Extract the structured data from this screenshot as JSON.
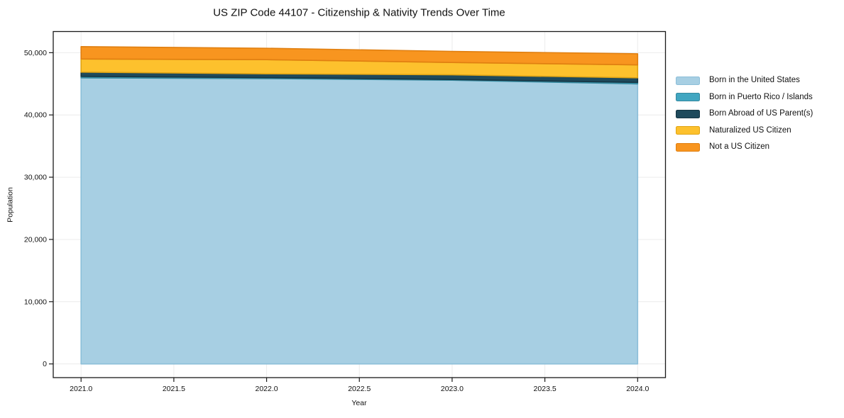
{
  "chart_data": {
    "type": "area",
    "stacked": true,
    "title": "US ZIP Code 44107 - Citizenship & Nativity Trends Over Time",
    "xlabel": "Year",
    "ylabel": "Population",
    "x": [
      2021,
      2022,
      2023,
      2024
    ],
    "series": [
      {
        "name": "Born in the United States",
        "fill": "#a7cfe3",
        "edge": "#8cbfd9",
        "values": [
          45960,
          45840,
          45580,
          44990
        ]
      },
      {
        "name": "Born in Puerto Rico / Islands",
        "fill": "#41a6c1",
        "edge": "#35899f",
        "values": [
          230,
          160,
          120,
          230
        ]
      },
      {
        "name": "Born Abroad of US Parent(s)",
        "fill": "#1f4a5c",
        "edge": "#163543",
        "values": [
          680,
          610,
          750,
          740
        ]
      },
      {
        "name": "Naturalized US Citizen",
        "fill": "#fdc12d",
        "edge": "#e0a414",
        "values": [
          2120,
          2270,
          1980,
          2080
        ]
      },
      {
        "name": "Not a US Citizen",
        "fill": "#f8951f",
        "edge": "#e07f10",
        "values": [
          1980,
          1830,
          1780,
          1790
        ]
      }
    ],
    "xlim": [
      2020.85,
      2024.15
    ],
    "ylim": [
      -2200,
      53400
    ],
    "xticks": {
      "values": [
        2021,
        2021.5,
        2022,
        2022.5,
        2023,
        2023.5,
        2024
      ],
      "labels": [
        "2021.0",
        "2021.5",
        "2022.0",
        "2022.5",
        "2023.0",
        "2023.5",
        "2024.0"
      ]
    },
    "yticks": {
      "values": [
        0,
        10000,
        20000,
        30000,
        40000,
        50000
      ],
      "labels": [
        "0",
        "10,000",
        "20,000",
        "30,000",
        "40,000",
        "50,000"
      ]
    },
    "grid": true,
    "legend_position": "right-outside"
  },
  "colors": {
    "background": "#ffffff",
    "grid": "#ececec",
    "spine": "#1a1a1a",
    "text": "#111111"
  }
}
